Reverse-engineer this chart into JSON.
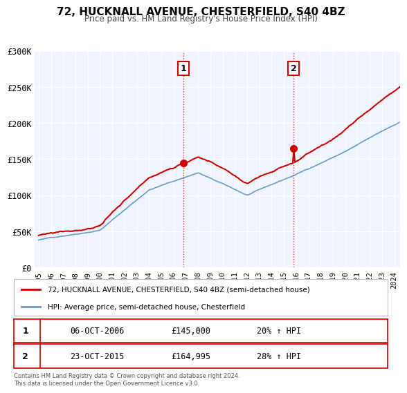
{
  "title": "72, HUCKNALL AVENUE, CHESTERFIELD, S40 4BZ",
  "subtitle": "Price paid vs. HM Land Registry's House Price Index (HPI)",
  "ylim": [
    0,
    300000
  ],
  "yticks": [
    0,
    50000,
    100000,
    150000,
    200000,
    250000,
    300000
  ],
  "ytick_labels": [
    "£0",
    "£50K",
    "£100K",
    "£150K",
    "£200K",
    "£250K",
    "£300K"
  ],
  "x_start_year": 1995,
  "x_end_year": 2024,
  "red_color": "#cc0000",
  "blue_color": "#6699cc",
  "sale1_price": 145000,
  "sale2_price": 164995,
  "legend_line1": "72, HUCKNALL AVENUE, CHESTERFIELD, S40 4BZ (semi-detached house)",
  "legend_line2": "HPI: Average price, semi-detached house, Chesterfield",
  "table_row1_date": "06-OCT-2006",
  "table_row1_price": "£145,000",
  "table_row1_hpi": "20% ↑ HPI",
  "table_row2_date": "23-OCT-2015",
  "table_row2_price": "£164,995",
  "table_row2_hpi": "28% ↑ HPI",
  "copyright_text": "Contains HM Land Registry data © Crown copyright and database right 2024.\nThis data is licensed under the Open Government Licence v3.0.",
  "plot_bg_color": "#f0f4ff",
  "fig_bg_color": "#ffffff"
}
